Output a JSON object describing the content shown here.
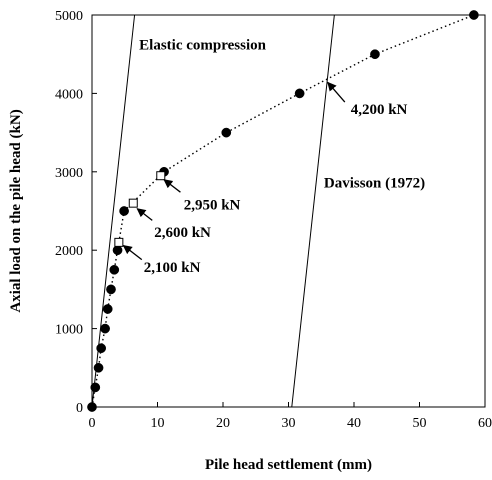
{
  "chart_data": {
    "type": "scatter",
    "xlabel": "Pile head settlement (mm)",
    "ylabel": "Axial load on the pile head (kN)",
    "xlim": [
      0,
      60
    ],
    "ylim": [
      0,
      5000
    ],
    "x_ticks": [
      0,
      10,
      20,
      30,
      40,
      50,
      60
    ],
    "y_ticks": [
      0,
      1000,
      2000,
      3000,
      4000,
      5000
    ],
    "grid": false,
    "series": [
      {
        "style": "filled-circle-markers-dotted-line",
        "color": "#000000",
        "points": [
          {
            "x": 0,
            "y": 0
          },
          {
            "x": 0.5,
            "y": 250
          },
          {
            "x": 1.0,
            "y": 500
          },
          {
            "x": 1.4,
            "y": 750
          },
          {
            "x": 2.0,
            "y": 1000
          },
          {
            "x": 2.4,
            "y": 1250
          },
          {
            "x": 2.9,
            "y": 1500
          },
          {
            "x": 3.4,
            "y": 1750
          },
          {
            "x": 3.9,
            "y": 2000
          },
          {
            "x": 4.9,
            "y": 2500
          },
          {
            "x": 11.0,
            "y": 3000
          },
          {
            "x": 20.5,
            "y": 3500
          },
          {
            "x": 31.7,
            "y": 4000
          },
          {
            "x": 43.2,
            "y": 4500
          },
          {
            "x": 58.3,
            "y": 5000
          }
        ]
      },
      {
        "style": "open-square-markers",
        "color": "#000000",
        "points": [
          {
            "x": 4.1,
            "y": 2100
          },
          {
            "x": 6.3,
            "y": 2600
          },
          {
            "x": 10.5,
            "y": 2950
          }
        ]
      }
    ],
    "reference_lines": [
      {
        "name": "Elastic compression",
        "x1": 0,
        "y1": 0,
        "x2": 6.5,
        "y2": 5000
      },
      {
        "name": "Davisson (1972)",
        "x1": 30.5,
        "y1": 0,
        "x2": 37.0,
        "y2": 5000
      }
    ],
    "annotations": [
      {
        "text": "Elastic compression",
        "x": 7.2,
        "y": 4560,
        "anchor": "start"
      },
      {
        "text": "Davisson (1972)",
        "x": 35.4,
        "y": 2800,
        "anchor": "start"
      },
      {
        "text": "4,200 kN",
        "x": 39.5,
        "y": 3740,
        "anchor": "start",
        "arrow_from": [
          38.6,
          3890
        ],
        "arrow_to": [
          36.0,
          4140
        ]
      },
      {
        "text": "2,950 kN",
        "x": 14.0,
        "y": 2520,
        "anchor": "start",
        "arrow_from": [
          13.5,
          2740
        ],
        "arrow_to": [
          11.0,
          2900
        ]
      },
      {
        "text": "2,600 kN",
        "x": 9.5,
        "y": 2170,
        "anchor": "start",
        "arrow_from": [
          9.2,
          2380
        ],
        "arrow_to": [
          6.9,
          2530
        ]
      },
      {
        "text": "2,100 kN",
        "x": 7.9,
        "y": 1720,
        "anchor": "start",
        "arrow_from": [
          7.6,
          1880
        ],
        "arrow_to": [
          4.8,
          2060
        ]
      }
    ]
  }
}
